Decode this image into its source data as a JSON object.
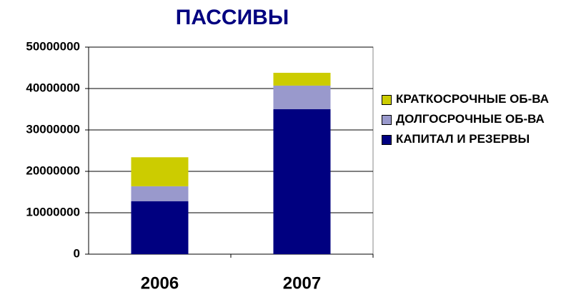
{
  "chart_data": {
    "type": "stacked_bar",
    "title": "ПАССИВЫ",
    "categories": [
      "2006",
      "2007"
    ],
    "series": [
      {
        "name": "КАПИТАЛ И РЕЗЕРВЫ",
        "color": "#000080",
        "values": [
          12800000,
          35000000
        ]
      },
      {
        "name": "ДОЛГОСРОЧНЫЕ ОБ-ВА",
        "color": "#9999cc",
        "values": [
          3600000,
          5700000
        ]
      },
      {
        "name": "КРАТКОСРОЧНЫЕ ОБ-ВА",
        "color": "#cccc00",
        "values": [
          7000000,
          3100000
        ]
      }
    ],
    "ylim": [
      0,
      50000000
    ],
    "yticks": [
      0,
      10000000,
      20000000,
      30000000,
      40000000,
      50000000
    ],
    "grid": true,
    "legend": "right"
  }
}
